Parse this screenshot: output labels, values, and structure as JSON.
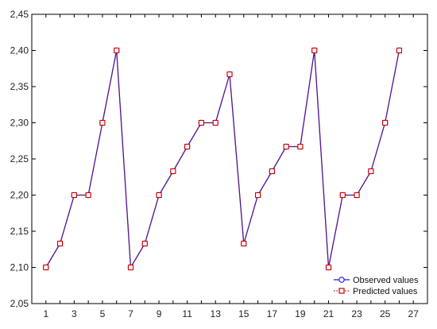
{
  "chart_data": {
    "type": "line",
    "x": [
      1,
      2,
      3,
      4,
      5,
      6,
      7,
      8,
      9,
      10,
      11,
      12,
      13,
      14,
      15,
      16,
      17,
      18,
      19,
      20,
      21,
      22,
      23,
      24,
      25,
      26
    ],
    "series": [
      {
        "name": "Observed values",
        "color": "#1f1fd0",
        "marker": "circle",
        "values": [
          2.1,
          2.133,
          2.2,
          2.2,
          2.3,
          2.4,
          2.1,
          2.133,
          2.2,
          2.233,
          2.267,
          2.3,
          2.3,
          2.367,
          2.133,
          2.2,
          2.233,
          2.267,
          2.267,
          2.4,
          2.1,
          2.2,
          2.2,
          2.233,
          2.3,
          2.4
        ]
      },
      {
        "name": "Predicted values",
        "color": "#cc0000",
        "marker": "square",
        "line_style": "dotted",
        "values": [
          2.1,
          2.133,
          2.2,
          2.2,
          2.3,
          2.4,
          2.1,
          2.133,
          2.2,
          2.233,
          2.267,
          2.3,
          2.3,
          2.367,
          2.133,
          2.2,
          2.233,
          2.267,
          2.267,
          2.4,
          2.1,
          2.2,
          2.2,
          2.233,
          2.3,
          2.4
        ]
      }
    ],
    "ylim": [
      2.05,
      2.45
    ],
    "xlim": [
      0,
      28
    ],
    "yticks": [
      "2,05",
      "2,10",
      "2,15",
      "2,20",
      "2,25",
      "2,30",
      "2,35",
      "2,40",
      "2,45"
    ],
    "ytick_values": [
      2.05,
      2.1,
      2.15,
      2.2,
      2.25,
      2.3,
      2.35,
      2.4,
      2.45
    ],
    "xticks": [
      "1",
      "3",
      "5",
      "7",
      "9",
      "11",
      "13",
      "15",
      "17",
      "19",
      "21",
      "23",
      "25",
      "27"
    ],
    "xtick_values": [
      1,
      3,
      5,
      7,
      9,
      11,
      13,
      15,
      17,
      19,
      21,
      23,
      25,
      27
    ],
    "grid": false,
    "legend_position": "bottom-right",
    "line_color": "#6a2a9a"
  }
}
